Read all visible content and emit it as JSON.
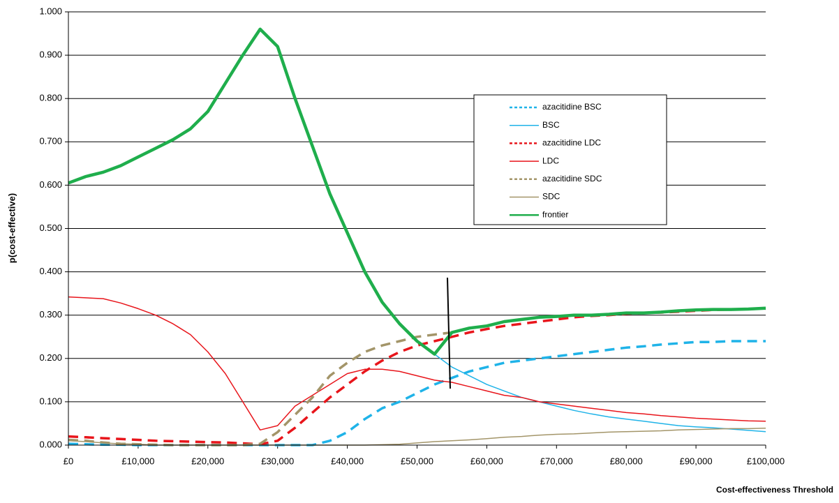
{
  "chart_data": {
    "type": "line",
    "y_label": "p(cost-effective)",
    "x_label": "Cost-effectiveness Threshold",
    "xlim": [
      0,
      100000
    ],
    "ylim": [
      0,
      1
    ],
    "xticks": [
      {
        "value": 0,
        "label": "£0"
      },
      {
        "value": 10000,
        "label": "£10,000"
      },
      {
        "value": 20000,
        "label": "£20,000"
      },
      {
        "value": 30000,
        "label": "£30,000"
      },
      {
        "value": 40000,
        "label": "£40,000"
      },
      {
        "value": 50000,
        "label": "£50,000"
      },
      {
        "value": 60000,
        "label": "£60,000"
      },
      {
        "value": 70000,
        "label": "£70,000"
      },
      {
        "value": 80000,
        "label": "£80,000"
      },
      {
        "value": 90000,
        "label": "£90,000"
      },
      {
        "value": 100000,
        "label": "£100,000"
      }
    ],
    "yticks": [
      {
        "value": 0,
        "label": "0.000"
      },
      {
        "value": 0.1,
        "label": "0.100"
      },
      {
        "value": 0.2,
        "label": "0.200"
      },
      {
        "value": 0.3,
        "label": "0.300"
      },
      {
        "value": 0.4,
        "label": "0.400"
      },
      {
        "value": 0.5,
        "label": "0.500"
      },
      {
        "value": 0.6,
        "label": "0.600"
      },
      {
        "value": 0.7,
        "label": "0.700"
      },
      {
        "value": 0.8,
        "label": "0.800"
      },
      {
        "value": 0.9,
        "label": "0.900"
      },
      {
        "value": 1,
        "label": "1.000"
      }
    ],
    "grid": true,
    "x": [
      0,
      2500,
      5000,
      7500,
      10000,
      12500,
      15000,
      17500,
      20000,
      22500,
      25000,
      27500,
      30000,
      32500,
      35000,
      37500,
      40000,
      42500,
      45000,
      47500,
      50000,
      52500,
      55000,
      57500,
      60000,
      62500,
      65000,
      67500,
      70000,
      72500,
      75000,
      77500,
      80000,
      82500,
      85000,
      87500,
      90000,
      92500,
      95000,
      97500,
      100000
    ],
    "series": [
      {
        "name": "azacitidine BSC",
        "color": "#1fb3e8",
        "dashed": true,
        "linewidth": 3.5,
        "values": [
          0.003,
          0.002,
          0.001,
          0.001,
          0,
          0,
          0,
          0,
          0,
          0,
          0,
          0,
          0,
          0,
          0,
          0.01,
          0.03,
          0.06,
          0.085,
          0.1,
          0.12,
          0.14,
          0.155,
          0.17,
          0.18,
          0.19,
          0.195,
          0.2,
          0.205,
          0.21,
          0.215,
          0.22,
          0.225,
          0.228,
          0.232,
          0.235,
          0.238,
          0.238,
          0.24,
          0.24,
          0.24
        ]
      },
      {
        "name": "BSC",
        "color": "#1fb3e8",
        "dashed": false,
        "linewidth": 1.5,
        "values": [
          0.605,
          0.62,
          0.63,
          0.645,
          0.665,
          0.685,
          0.705,
          0.73,
          0.77,
          0.835,
          0.9,
          0.96,
          0.92,
          0.8,
          0.69,
          0.58,
          0.49,
          0.4,
          0.33,
          0.28,
          0.24,
          0.21,
          0.18,
          0.16,
          0.14,
          0.125,
          0.11,
          0.1,
          0.09,
          0.08,
          0.072,
          0.065,
          0.06,
          0.055,
          0.05,
          0.045,
          0.042,
          0.04,
          0.037,
          0.034,
          0.031
        ]
      },
      {
        "name": "azacitidine LDC",
        "color": "#e8151b",
        "dashed": true,
        "linewidth": 3.5,
        "values": [
          0.02,
          0.018,
          0.016,
          0.014,
          0.012,
          0.01,
          0.009,
          0.008,
          0.007,
          0.006,
          0.004,
          0.002,
          0.01,
          0.04,
          0.075,
          0.11,
          0.14,
          0.17,
          0.195,
          0.215,
          0.23,
          0.24,
          0.25,
          0.26,
          0.268,
          0.275,
          0.28,
          0.285,
          0.29,
          0.295,
          0.298,
          0.3,
          0.303,
          0.305,
          0.306,
          0.308,
          0.31,
          0.312,
          0.313,
          0.314,
          0.315
        ]
      },
      {
        "name": "LDC",
        "color": "#e8151b",
        "dashed": false,
        "linewidth": 1.5,
        "values": [
          0.342,
          0.34,
          0.338,
          0.328,
          0.315,
          0.3,
          0.28,
          0.255,
          0.215,
          0.165,
          0.1,
          0.035,
          0.045,
          0.09,
          0.115,
          0.14,
          0.165,
          0.175,
          0.175,
          0.17,
          0.16,
          0.15,
          0.145,
          0.135,
          0.125,
          0.115,
          0.11,
          0.1,
          0.095,
          0.09,
          0.085,
          0.08,
          0.075,
          0.072,
          0.068,
          0.065,
          0.062,
          0.06,
          0.058,
          0.056,
          0.055
        ]
      },
      {
        "name": "azacitidine SDC",
        "color": "#a39569",
        "dashed": true,
        "linewidth": 3.5,
        "values": [
          0.012,
          0.01,
          0.006,
          0.003,
          0.002,
          0.001,
          0,
          0,
          0,
          0,
          0,
          0.003,
          0.03,
          0.07,
          0.11,
          0.16,
          0.19,
          0.215,
          0.23,
          0.24,
          0.25,
          0.255,
          0.26,
          0.27,
          0.275,
          0.285,
          0.29,
          0.295,
          0.297,
          0.3,
          0.3,
          0.302,
          0.305,
          0.305,
          0.307,
          0.31,
          0.312,
          0.313,
          0.313,
          0.314,
          0.316
        ]
      },
      {
        "name": "SDC",
        "color": "#a39569",
        "dashed": false,
        "linewidth": 1.5,
        "values": [
          0.01,
          0.008,
          0.005,
          0.003,
          0.002,
          0,
          0,
          0,
          0,
          0,
          0,
          0,
          0,
          0,
          0,
          0,
          0,
          0,
          0.001,
          0.002,
          0.005,
          0.008,
          0.01,
          0.012,
          0.015,
          0.018,
          0.02,
          0.023,
          0.025,
          0.026,
          0.028,
          0.03,
          0.031,
          0.032,
          0.033,
          0.035,
          0.036,
          0.037,
          0.038,
          0.038,
          0.039
        ]
      },
      {
        "name": "frontier",
        "color": "#1fae4c",
        "dashed": false,
        "linewidth": 4.5,
        "values": [
          0.605,
          0.62,
          0.63,
          0.645,
          0.665,
          0.685,
          0.705,
          0.73,
          0.77,
          0.835,
          0.9,
          0.96,
          0.92,
          0.8,
          0.69,
          0.58,
          0.49,
          0.4,
          0.33,
          0.28,
          0.24,
          0.21,
          0.26,
          0.27,
          0.275,
          0.285,
          0.29,
          0.295,
          0.297,
          0.3,
          0.3,
          0.302,
          0.305,
          0.305,
          0.307,
          0.31,
          0.312,
          0.313,
          0.313,
          0.314,
          0.316
        ]
      }
    ]
  }
}
